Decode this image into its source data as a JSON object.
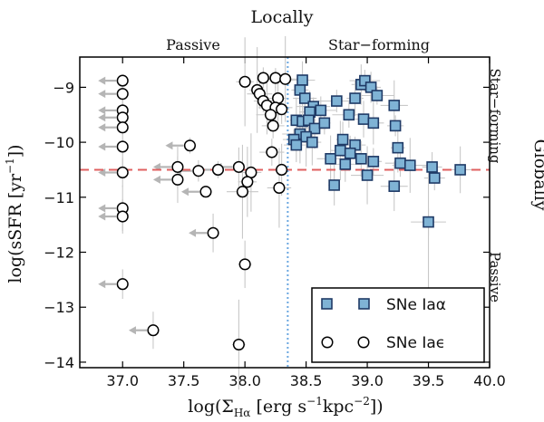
{
  "chart_data": {
    "type": "scatter",
    "title_top": "Locally",
    "title_right": "Globally",
    "region_labels_top": {
      "left": "Passive",
      "right": "Star−forming"
    },
    "region_labels_right": {
      "upper": "Star−forming",
      "lower": "Passive"
    },
    "xlabel": "log(Σ",
    "xlabel_sub": "Hα",
    "xlabel_rest": " [erg s",
    "xlabel_sup1": "−1",
    "xlabel_mid": "kpc",
    "xlabel_sup2": "−2",
    "xlabel_end": "])",
    "ylabel": "log(sSFR [yr",
    "ylabel_sup": "−1",
    "ylabel_end": "])",
    "xlim": [
      36.65,
      40.0
    ],
    "ylim": [
      -14.1,
      -8.45
    ],
    "xticks": [
      37.0,
      37.5,
      38.0,
      38.5,
      39.0,
      39.5,
      40.0
    ],
    "xtick_labels": [
      "37.0",
      "37.5",
      "38.0",
      "38.5",
      "39.0",
      "39.5",
      "40.0"
    ],
    "yticks": [
      -14,
      -13,
      -12,
      -11,
      -10,
      -9
    ],
    "ytick_labels": [
      "−14",
      "−13",
      "−12",
      "−11",
      "−10",
      "−9"
    ],
    "hline_y": -10.5,
    "vline_x": 38.35,
    "legend": [
      {
        "label": "SNe Iaα",
        "marker": "square"
      },
      {
        "label": "SNe Iaϵ",
        "marker": "circle"
      }
    ],
    "colors": {
      "square_fill": "#7fb3d5",
      "square_edge": "#1f3a66",
      "hline": "#e06060",
      "vline": "#6aa7e0",
      "errbar": "#c8c8c8",
      "arrow": "#b5b5b5"
    },
    "series": [
      {
        "name": "SNe Iaα",
        "points": [
          {
            "x": 38.47,
            "y": -8.87
          },
          {
            "x": 38.45,
            "y": -9.05
          },
          {
            "x": 38.49,
            "y": -9.2
          },
          {
            "x": 38.56,
            "y": -9.35
          },
          {
            "x": 38.53,
            "y": -9.45
          },
          {
            "x": 38.62,
            "y": -9.42
          },
          {
            "x": 38.42,
            "y": -9.6
          },
          {
            "x": 38.47,
            "y": -9.62
          },
          {
            "x": 38.52,
            "y": -9.6
          },
          {
            "x": 38.57,
            "y": -9.75
          },
          {
            "x": 38.65,
            "y": -9.65
          },
          {
            "x": 38.45,
            "y": -9.85
          },
          {
            "x": 38.4,
            "y": -9.95
          },
          {
            "x": 38.5,
            "y": -9.9
          },
          {
            "x": 38.42,
            "y": -10.05
          },
          {
            "x": 38.55,
            "y": -10.0
          },
          {
            "x": 38.75,
            "y": -9.25
          },
          {
            "x": 38.9,
            "y": -9.2
          },
          {
            "x": 38.95,
            "y": -8.95
          },
          {
            "x": 38.98,
            "y": -8.88
          },
          {
            "x": 39.03,
            "y": -9.0
          },
          {
            "x": 39.08,
            "y": -9.15
          },
          {
            "x": 38.85,
            "y": -9.5
          },
          {
            "x": 38.97,
            "y": -9.58
          },
          {
            "x": 39.05,
            "y": -9.65
          },
          {
            "x": 39.22,
            "y": -9.33
          },
          {
            "x": 39.23,
            "y": -9.7
          },
          {
            "x": 38.8,
            "y": -9.95
          },
          {
            "x": 38.9,
            "y": -10.05
          },
          {
            "x": 38.7,
            "y": -10.3
          },
          {
            "x": 38.78,
            "y": -10.15
          },
          {
            "x": 38.86,
            "y": -10.2
          },
          {
            "x": 38.82,
            "y": -10.4
          },
          {
            "x": 38.95,
            "y": -10.3
          },
          {
            "x": 39.05,
            "y": -10.35
          },
          {
            "x": 39.25,
            "y": -10.1
          },
          {
            "x": 39.27,
            "y": -10.38
          },
          {
            "x": 39.35,
            "y": -10.42
          },
          {
            "x": 39.0,
            "y": -10.6
          },
          {
            "x": 39.22,
            "y": -10.8
          },
          {
            "x": 38.73,
            "y": -10.78
          },
          {
            "x": 39.53,
            "y": -10.45
          },
          {
            "x": 39.55,
            "y": -10.65
          },
          {
            "x": 39.76,
            "y": -10.5
          },
          {
            "x": 39.5,
            "y": -11.45
          }
        ]
      },
      {
        "name": "SNe Iaϵ",
        "points": [
          {
            "x": 37.0,
            "y": -8.88,
            "ul": true
          },
          {
            "x": 37.0,
            "y": -9.12,
            "ul": true
          },
          {
            "x": 37.0,
            "y": -9.42,
            "ul": true
          },
          {
            "x": 37.0,
            "y": -9.55,
            "ul": true
          },
          {
            "x": 37.0,
            "y": -9.73,
            "ul": true
          },
          {
            "x": 37.0,
            "y": -10.08,
            "ul": true
          },
          {
            "x": 37.0,
            "y": -10.55,
            "ul": true
          },
          {
            "x": 37.0,
            "y": -11.2,
            "ul": true
          },
          {
            "x": 37.0,
            "y": -11.35,
            "ul": true
          },
          {
            "x": 37.0,
            "y": -12.58,
            "ul": true
          },
          {
            "x": 37.55,
            "y": -10.06,
            "ul": true
          },
          {
            "x": 37.45,
            "y": -10.45,
            "ul": true
          },
          {
            "x": 37.45,
            "y": -10.68,
            "ul": true
          },
          {
            "x": 37.62,
            "y": -10.52,
            "ul": true
          },
          {
            "x": 37.68,
            "y": -10.9,
            "ul": true
          },
          {
            "x": 37.78,
            "y": -10.5,
            "ul": true
          },
          {
            "x": 37.95,
            "y": -10.45,
            "ul": true
          },
          {
            "x": 37.74,
            "y": -11.65,
            "ul": true
          },
          {
            "x": 37.25,
            "y": -13.42,
            "ul": true
          },
          {
            "x": 38.0,
            "y": -8.9,
            "ul": false
          },
          {
            "x": 38.1,
            "y": -9.05,
            "ul": false
          },
          {
            "x": 38.15,
            "y": -8.83,
            "ul": false
          },
          {
            "x": 38.25,
            "y": -8.83,
            "ul": false
          },
          {
            "x": 38.33,
            "y": -8.85,
            "ul": false
          },
          {
            "x": 38.12,
            "y": -9.12,
            "ul": false
          },
          {
            "x": 38.15,
            "y": -9.25,
            "ul": false
          },
          {
            "x": 38.18,
            "y": -9.33,
            "ul": false
          },
          {
            "x": 38.27,
            "y": -9.2,
            "ul": false
          },
          {
            "x": 38.25,
            "y": -9.37,
            "ul": false
          },
          {
            "x": 38.3,
            "y": -9.4,
            "ul": false
          },
          {
            "x": 38.21,
            "y": -9.5,
            "ul": false
          },
          {
            "x": 38.23,
            "y": -9.7,
            "ul": false
          },
          {
            "x": 38.22,
            "y": -10.18,
            "ul": false
          },
          {
            "x": 38.3,
            "y": -10.5,
            "ul": false
          },
          {
            "x": 38.28,
            "y": -10.83,
            "ul": false
          },
          {
            "x": 38.05,
            "y": -10.55,
            "ul": false
          },
          {
            "x": 37.98,
            "y": -10.9,
            "ul": false
          },
          {
            "x": 38.02,
            "y": -10.72,
            "ul": false
          },
          {
            "x": 38.0,
            "y": -12.22,
            "ul": false
          },
          {
            "x": 37.95,
            "y": -13.68,
            "ul": false
          }
        ]
      }
    ]
  }
}
